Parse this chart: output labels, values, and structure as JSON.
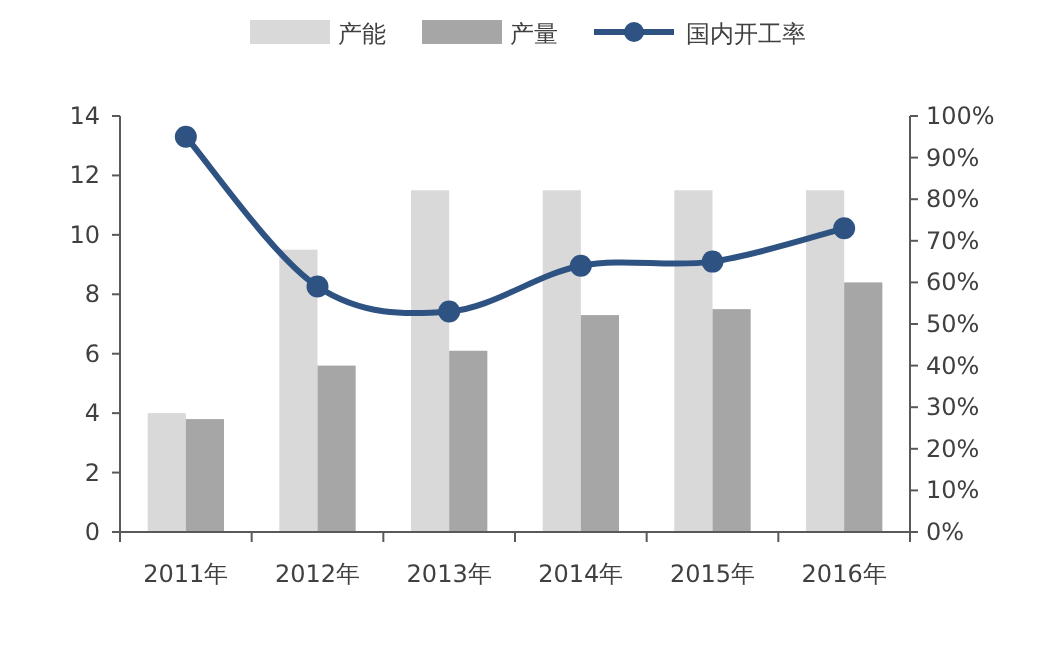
{
  "chart_data": {
    "type": "bar",
    "categories": [
      "2011年",
      "2012年",
      "2013年",
      "2014年",
      "2015年",
      "2016年"
    ],
    "series": [
      {
        "name": "产能",
        "color": "#d9d9d9",
        "values": [
          4,
          9.5,
          11.5,
          11.5,
          11.5,
          11.5
        ]
      },
      {
        "name": "产量",
        "color": "#a6a6a6",
        "values": [
          3.8,
          5.6,
          6.1,
          7.3,
          7.5,
          8.4
        ]
      },
      {
        "name": "国内开工率",
        "type": "line",
        "axis": "y2",
        "color": "#2e5382",
        "marker": "circle",
        "values": [
          95,
          59,
          53,
          64,
          65,
          73
        ]
      }
    ],
    "ylim": [
      0,
      14
    ],
    "yticks": [
      0,
      2,
      4,
      6,
      8,
      10,
      12,
      14
    ],
    "y2lim": [
      0,
      100
    ],
    "y2ticks": [
      {
        "value": 0,
        "label": "0%"
      },
      {
        "value": 10,
        "label": "10%"
      },
      {
        "value": 20,
        "label": "20%"
      },
      {
        "value": 30,
        "label": "30%"
      },
      {
        "value": 40,
        "label": "40%"
      },
      {
        "value": 50,
        "label": "50%"
      },
      {
        "value": 60,
        "label": "60%"
      },
      {
        "value": 70,
        "label": "70%"
      },
      {
        "value": 80,
        "label": "80%"
      },
      {
        "value": 90,
        "label": "90%"
      },
      {
        "value": 100,
        "label": "100%"
      }
    ],
    "grid": false,
    "legend": "top"
  }
}
